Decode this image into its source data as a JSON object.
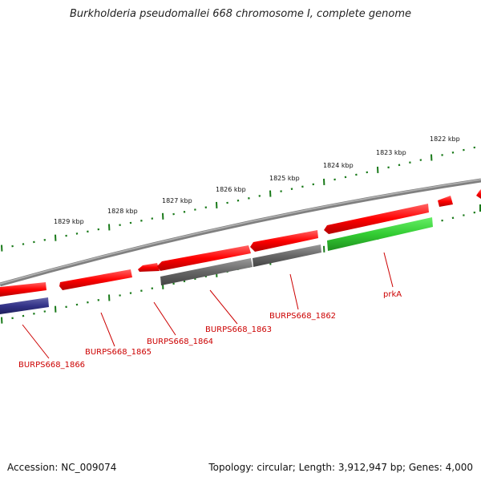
{
  "title": "Burkholderia pseudomallei 668 chromosome I, complete genome",
  "accession": "Accession: NC_009074",
  "summary": "Topology: circular; Length: 3,912,947 bp; Genes: 4,000",
  "colors": {
    "forward_gene": "#ff0000",
    "reverse_gene_grey": "#666666",
    "reverse_gene_green": "#33cc33",
    "reverse_gene_blue": "#333388",
    "backbone": "#808080",
    "ticks": "#1a7a1a",
    "labels": "#cc0000"
  },
  "scale_labels": [
    "1822 kbp",
    "1823 kbp",
    "1824 kbp",
    "1825 kbp",
    "1826 kbp",
    "1827 kbp",
    "1828 kbp",
    "1829 kbp"
  ],
  "gene_labels": [
    "prkA",
    "BURPS668_1862",
    "BURPS668_1863",
    "BURPS668_1864",
    "BURPS668_1865",
    "BURPS668_1866"
  ]
}
